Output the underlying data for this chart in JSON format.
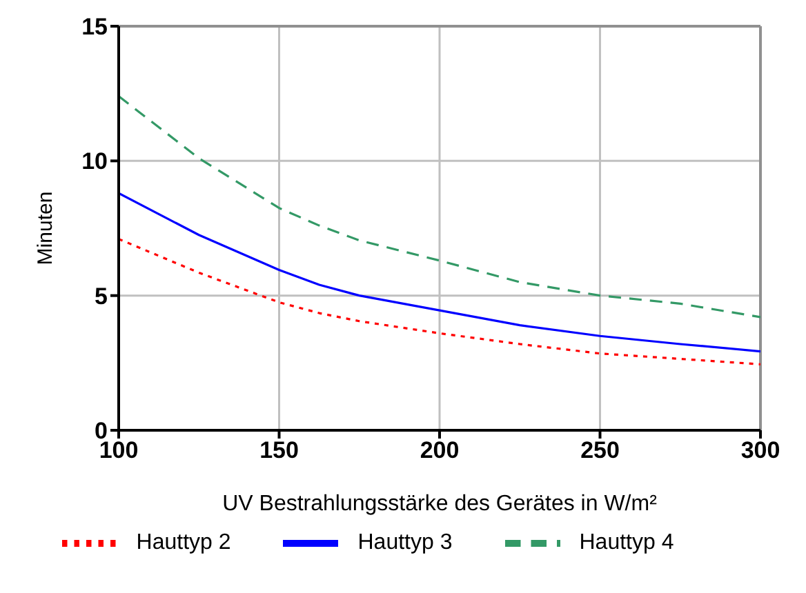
{
  "chart_data": {
    "type": "line",
    "xlabel": "UV Bestrahlungsstärke des Gerätes in W/m²",
    "ylabel": "Minuten",
    "x": [
      100,
      125,
      150,
      162.5,
      175,
      200,
      225,
      250,
      275,
      300
    ],
    "series": [
      {
        "name": "Hauttyp 2",
        "color": "#ff0000",
        "line_style": "dotted",
        "values": [
          7.1,
          5.85,
          4.75,
          4.35,
          4.05,
          3.6,
          3.2,
          2.85,
          2.65,
          2.45
        ]
      },
      {
        "name": "Hauttyp 3",
        "color": "#0000ff",
        "line_style": "solid",
        "values": [
          8.8,
          7.25,
          5.95,
          5.4,
          5.0,
          4.45,
          3.9,
          3.5,
          3.2,
          2.93
        ]
      },
      {
        "name": "Hauttyp 4",
        "color": "#339966",
        "line_style": "dashed",
        "values": [
          12.4,
          10.1,
          8.25,
          7.6,
          7.05,
          6.3,
          5.5,
          5.0,
          4.7,
          4.2
        ]
      }
    ],
    "xlim": [
      100,
      300
    ],
    "xticks": [
      100,
      150,
      200,
      250,
      300
    ],
    "ylim": [
      0,
      15
    ],
    "yticks": [
      0,
      5,
      10,
      15
    ],
    "grid": true,
    "legend": "bottom",
    "marker": "none"
  }
}
